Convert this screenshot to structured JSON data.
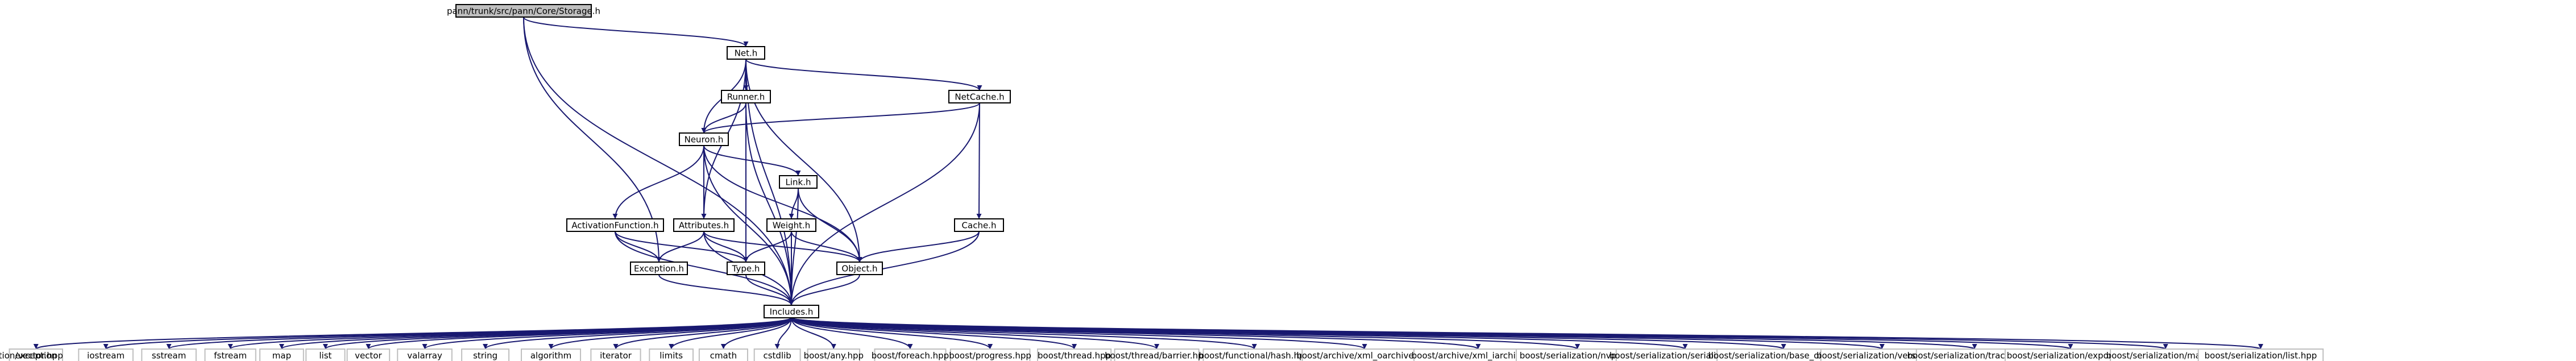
{
  "colors": {
    "edge": "#191970",
    "root_fill": "#bfbfbf",
    "leaf_border": "#bfbfbf",
    "node_border": "#000000"
  },
  "nodes": [
    {
      "id": "storage",
      "label": "pann/trunk/src/pann/Core/Storage.h",
      "kind": "root"
    },
    {
      "id": "net",
      "label": "Net.h",
      "kind": "inner"
    },
    {
      "id": "runner",
      "label": "Runner.h",
      "kind": "inner"
    },
    {
      "id": "netcache",
      "label": "NetCache.h",
      "kind": "inner"
    },
    {
      "id": "neuron",
      "label": "Neuron.h",
      "kind": "inner"
    },
    {
      "id": "link",
      "label": "Link.h",
      "kind": "inner"
    },
    {
      "id": "activation",
      "label": "ActivationFunction.h",
      "kind": "inner"
    },
    {
      "id": "attributes",
      "label": "Attributes.h",
      "kind": "inner"
    },
    {
      "id": "weight",
      "label": "Weight.h",
      "kind": "inner"
    },
    {
      "id": "cache",
      "label": "Cache.h",
      "kind": "inner"
    },
    {
      "id": "exception",
      "label": "Exception.h",
      "kind": "inner"
    },
    {
      "id": "type",
      "label": "Type.h",
      "kind": "inner"
    },
    {
      "id": "object",
      "label": "Object.h",
      "kind": "inner"
    },
    {
      "id": "includes",
      "label": "Includes.h",
      "kind": "inner"
    },
    {
      "id": "l_exception",
      "label": "exception",
      "kind": "leaf"
    },
    {
      "id": "l_iostream",
      "label": "iostream",
      "kind": "leaf"
    },
    {
      "id": "l_sstream",
      "label": "sstream",
      "kind": "leaf"
    },
    {
      "id": "l_fstream",
      "label": "fstream",
      "kind": "leaf"
    },
    {
      "id": "l_map",
      "label": "map",
      "kind": "leaf"
    },
    {
      "id": "l_list",
      "label": "list",
      "kind": "leaf"
    },
    {
      "id": "l_vector",
      "label": "vector",
      "kind": "leaf"
    },
    {
      "id": "l_valarray",
      "label": "valarray",
      "kind": "leaf"
    },
    {
      "id": "l_string",
      "label": "string",
      "kind": "leaf"
    },
    {
      "id": "l_algorithm",
      "label": "algorithm",
      "kind": "leaf"
    },
    {
      "id": "l_iterator",
      "label": "iterator",
      "kind": "leaf"
    },
    {
      "id": "l_limits",
      "label": "limits",
      "kind": "leaf"
    },
    {
      "id": "l_cmath",
      "label": "cmath",
      "kind": "leaf"
    },
    {
      "id": "l_cstdlib",
      "label": "cstdlib",
      "kind": "leaf"
    },
    {
      "id": "l_any",
      "label": "boost/any.hpp",
      "kind": "leaf"
    },
    {
      "id": "l_foreach",
      "label": "boost/foreach.hpp",
      "kind": "leaf"
    },
    {
      "id": "l_progress",
      "label": "boost/progress.hpp",
      "kind": "leaf"
    },
    {
      "id": "l_thread",
      "label": "boost/thread.hpp",
      "kind": "leaf"
    },
    {
      "id": "l_barrier",
      "label": "boost/thread/barrier.hpp",
      "kind": "leaf"
    },
    {
      "id": "l_hash",
      "label": "boost/functional/hash.hpp",
      "kind": "leaf"
    },
    {
      "id": "l_xml_oarchive",
      "label": "boost/archive/xml_oarchive.hpp",
      "kind": "leaf"
    },
    {
      "id": "l_xml_iarchive",
      "label": "boost/archive/xml_iarchive.hpp",
      "kind": "leaf"
    },
    {
      "id": "l_nvp",
      "label": "boost/serialization/nvp.hpp",
      "kind": "leaf"
    },
    {
      "id": "l_serialization",
      "label": "boost/serialization/serialization.hpp",
      "kind": "leaf"
    },
    {
      "id": "l_base_object",
      "label": "boost/serialization/base_object.hpp",
      "kind": "leaf"
    },
    {
      "id": "l_version",
      "label": "boost/serialization/version.hpp",
      "kind": "leaf"
    },
    {
      "id": "l_tracking",
      "label": "boost/serialization/tracking.hpp",
      "kind": "leaf"
    },
    {
      "id": "l_export",
      "label": "boost/serialization/export.hpp",
      "kind": "leaf"
    },
    {
      "id": "l_smap",
      "label": "boost/serialization/map.hpp",
      "kind": "leaf"
    },
    {
      "id": "l_slist",
      "label": "boost/serialization/list.hpp",
      "kind": "leaf"
    },
    {
      "id": "l_svector",
      "label": "boost/serialization/vector.hpp",
      "kind": "leaf"
    }
  ],
  "edges": [
    [
      "storage",
      "net"
    ],
    [
      "storage",
      "exception"
    ],
    [
      "storage",
      "includes"
    ],
    [
      "net",
      "runner"
    ],
    [
      "net",
      "netcache"
    ],
    [
      "net",
      "neuron"
    ],
    [
      "net",
      "attributes"
    ],
    [
      "net",
      "object"
    ],
    [
      "net",
      "includes"
    ],
    [
      "runner",
      "neuron"
    ],
    [
      "runner",
      "type"
    ],
    [
      "runner",
      "includes"
    ],
    [
      "netcache",
      "neuron"
    ],
    [
      "netcache",
      "cache"
    ],
    [
      "netcache",
      "includes"
    ],
    [
      "neuron",
      "link"
    ],
    [
      "neuron",
      "activation"
    ],
    [
      "neuron",
      "attributes"
    ],
    [
      "neuron",
      "object"
    ],
    [
      "neuron",
      "includes"
    ],
    [
      "link",
      "weight"
    ],
    [
      "link",
      "object"
    ],
    [
      "link",
      "includes"
    ],
    [
      "activation",
      "exception"
    ],
    [
      "activation",
      "type"
    ],
    [
      "activation",
      "includes"
    ],
    [
      "attributes",
      "exception"
    ],
    [
      "attributes",
      "type"
    ],
    [
      "attributes",
      "object"
    ],
    [
      "attributes",
      "includes"
    ],
    [
      "weight",
      "type"
    ],
    [
      "weight",
      "object"
    ],
    [
      "weight",
      "includes"
    ],
    [
      "cache",
      "object"
    ],
    [
      "cache",
      "includes"
    ],
    [
      "exception",
      "includes"
    ],
    [
      "type",
      "includes"
    ],
    [
      "object",
      "includes"
    ],
    [
      "includes",
      "l_exception"
    ],
    [
      "includes",
      "l_iostream"
    ],
    [
      "includes",
      "l_sstream"
    ],
    [
      "includes",
      "l_fstream"
    ],
    [
      "includes",
      "l_map"
    ],
    [
      "includes",
      "l_list"
    ],
    [
      "includes",
      "l_vector"
    ],
    [
      "includes",
      "l_valarray"
    ],
    [
      "includes",
      "l_string"
    ],
    [
      "includes",
      "l_algorithm"
    ],
    [
      "includes",
      "l_iterator"
    ],
    [
      "includes",
      "l_limits"
    ],
    [
      "includes",
      "l_cmath"
    ],
    [
      "includes",
      "l_cstdlib"
    ],
    [
      "includes",
      "l_any"
    ],
    [
      "includes",
      "l_foreach"
    ],
    [
      "includes",
      "l_progress"
    ],
    [
      "includes",
      "l_thread"
    ],
    [
      "includes",
      "l_barrier"
    ],
    [
      "includes",
      "l_hash"
    ],
    [
      "includes",
      "l_xml_oarchive"
    ],
    [
      "includes",
      "l_xml_iarchive"
    ],
    [
      "includes",
      "l_nvp"
    ],
    [
      "includes",
      "l_serialization"
    ],
    [
      "includes",
      "l_base_object"
    ],
    [
      "includes",
      "l_version"
    ],
    [
      "includes",
      "l_tracking"
    ],
    [
      "includes",
      "l_export"
    ],
    [
      "includes",
      "l_smap"
    ],
    [
      "includes",
      "l_slist"
    ],
    [
      "includes",
      "l_svector"
    ]
  ]
}
